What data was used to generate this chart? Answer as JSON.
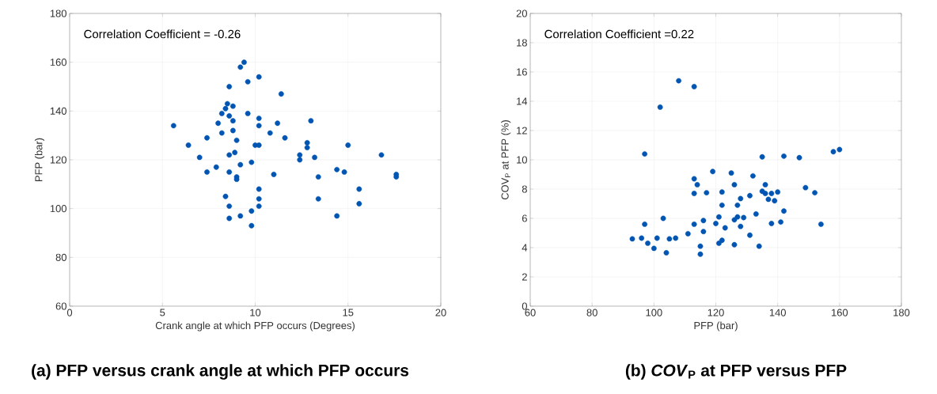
{
  "chart_data": [
    {
      "type": "scatter",
      "title": "(a) PFP versus crank angle at which PFP occurs",
      "xlabel": "Crank angle at which PFP occurs (Degrees)",
      "ylabel": "PFP (bar)",
      "annotations": [
        "Correlation Coefficient =   -0.26"
      ],
      "grid": true,
      "marker": "circle",
      "xlim": [
        0,
        20
      ],
      "ylim": [
        60,
        180
      ],
      "xticks": [
        0,
        5,
        10,
        15,
        20
      ],
      "yticks": [
        60,
        80,
        100,
        120,
        140,
        160,
        180
      ],
      "series": [
        {
          "color": "#0055b3",
          "x": [
            5.6,
            6.4,
            7.0,
            7.4,
            7.4,
            7.9,
            8.0,
            8.2,
            8.2,
            8.4,
            8.4,
            8.5,
            8.6,
            8.6,
            8.6,
            8.6,
            8.6,
            8.6,
            8.8,
            8.8,
            8.8,
            8.9,
            9.0,
            9.0,
            9.0,
            9.2,
            9.2,
            9.2,
            9.4,
            9.6,
            9.6,
            9.8,
            9.8,
            9.8,
            10.0,
            10.2,
            10.2,
            10.2,
            10.2,
            10.2,
            10.2,
            10.2,
            10.8,
            11.0,
            11.2,
            11.4,
            11.6,
            12.4,
            12.4,
            12.8,
            12.8,
            13.0,
            13.2,
            13.4,
            13.4,
            14.4,
            14.4,
            14.8,
            15.0,
            15.6,
            15.6,
            16.8,
            17.6,
            17.6
          ],
          "values": [
            134,
            126,
            121,
            115,
            129,
            117,
            135,
            131,
            139,
            105,
            141,
            143,
            122,
            138,
            150,
            115,
            96,
            101,
            132,
            136,
            142,
            123,
            113,
            128,
            112,
            97,
            118,
            158,
            160,
            139,
            152,
            99,
            93,
            119,
            126,
            154,
            137,
            134,
            126,
            108,
            104,
            101,
            131,
            114,
            135,
            147,
            129,
            122,
            120,
            127,
            125,
            136,
            121,
            113,
            104,
            116,
            97,
            115,
            126,
            108,
            102,
            122,
            114,
            113
          ]
        }
      ]
    },
    {
      "type": "scatter",
      "title": "(b) *COV*$_{P}$ at PFP versus PFP",
      "xlabel": "PFP (bar)",
      "ylabel": "COV$_{P}$ at PFP (%)",
      "annotations": [
        "Correlation Coefficient =0.22"
      ],
      "grid": true,
      "marker": "circle",
      "xlim": [
        60,
        180
      ],
      "ylim": [
        0,
        20
      ],
      "xticks": [
        60,
        80,
        100,
        120,
        140,
        160,
        180
      ],
      "yticks": [
        0,
        2,
        4,
        6,
        8,
        10,
        12,
        14,
        16,
        18,
        20
      ],
      "series": [
        {
          "color": "#0055b3",
          "x": [
            93,
            96,
            97,
            97,
            98,
            100,
            101,
            102,
            103,
            104,
            105,
            107,
            108,
            111,
            113,
            113,
            113,
            113,
            114,
            115,
            115,
            116,
            116,
            117,
            119,
            120,
            121,
            121,
            122,
            122,
            122,
            123,
            125,
            126,
            126,
            126,
            127,
            127,
            128,
            128,
            129,
            131,
            132,
            131,
            133,
            134,
            135,
            135,
            136,
            136,
            137,
            138,
            138,
            139,
            140,
            141,
            142,
            142,
            147,
            149,
            152,
            154,
            158,
            160
          ],
          "values": [
            4.6,
            4.65,
            10.4,
            5.6,
            4.3,
            3.95,
            4.65,
            13.6,
            6.0,
            3.65,
            4.6,
            4.65,
            15.4,
            4.95,
            15.0,
            8.7,
            7.7,
            5.6,
            8.3,
            4.1,
            3.55,
            5.85,
            5.1,
            7.75,
            9.2,
            5.65,
            4.3,
            6.1,
            7.8,
            4.5,
            6.9,
            5.35,
            9.1,
            4.2,
            8.3,
            5.9,
            6.1,
            6.9,
            7.35,
            5.45,
            6.05,
            4.85,
            8.9,
            7.55,
            6.3,
            4.1,
            10.2,
            7.85,
            8.3,
            7.7,
            7.3,
            5.65,
            7.7,
            7.2,
            7.8,
            5.75,
            6.5,
            10.25,
            10.15,
            8.1,
            7.75,
            5.6,
            10.55,
            10.7
          ]
        }
      ]
    }
  ]
}
